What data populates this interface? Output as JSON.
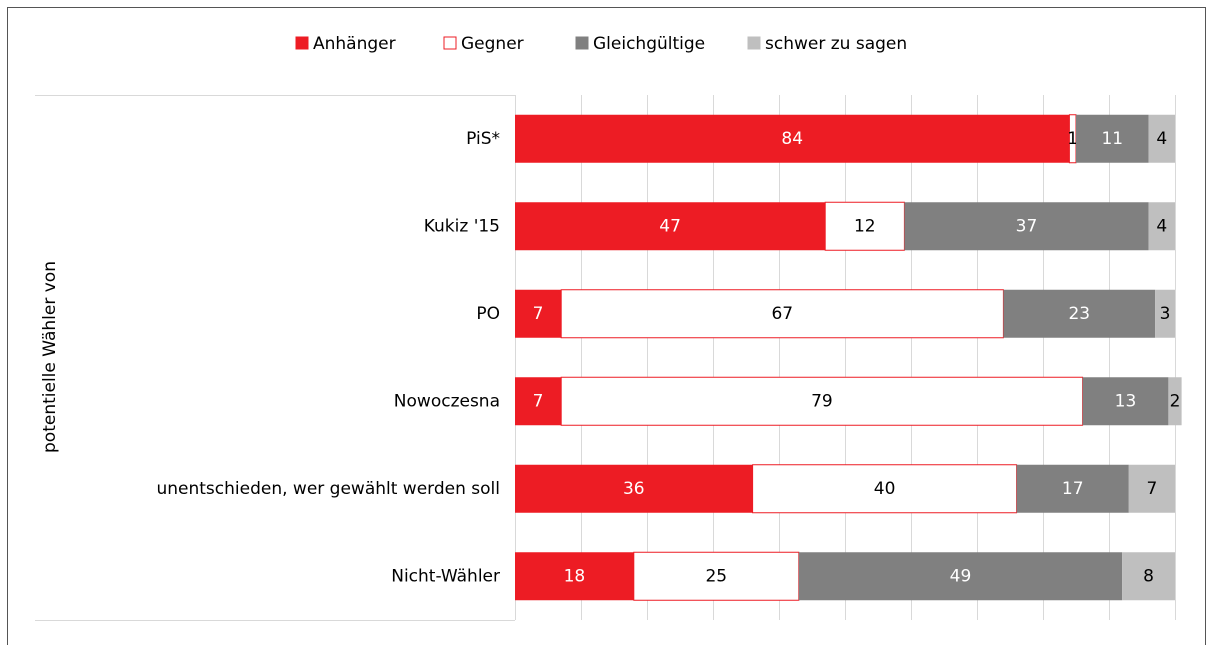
{
  "chart_data": {
    "type": "stacked_bar_horizontal",
    "y_label": "potentielle Wähler von",
    "categories": [
      "PiS*",
      "Kukiz '15",
      "PO",
      "Nowoczesna",
      "unentschieden, wer gewählt werden soll",
      "Nicht-Wähler"
    ],
    "series": [
      {
        "name": "Anhänger",
        "color": "#ed1c24",
        "values": [
          84,
          47,
          7,
          7,
          36,
          18
        ]
      },
      {
        "name": "Gegner",
        "color": "#ffffff",
        "values": [
          1,
          12,
          67,
          79,
          40,
          25
        ]
      },
      {
        "name": "Gleichgültige",
        "color": "#808080",
        "values": [
          11,
          37,
          23,
          13,
          17,
          49
        ]
      },
      {
        "name": "schwer zu sagen",
        "color": "#bfbfbf",
        "values": [
          4,
          4,
          3,
          2,
          7,
          8
        ]
      }
    ],
    "xlim": [
      0,
      100
    ],
    "xticks": [
      0,
      10,
      20,
      30,
      40,
      50,
      60,
      70,
      80,
      90,
      100
    ],
    "grid": true
  }
}
